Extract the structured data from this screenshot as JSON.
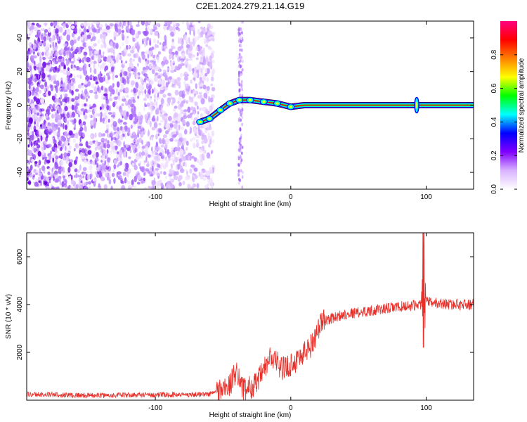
{
  "title": "C2E1.2024.279.21.14.G19",
  "chart_data": [
    {
      "type": "heatmap",
      "xlabel": "Height of straight line (km)",
      "ylabel": "Frequency (Hz)",
      "xlim": [
        -195,
        135
      ],
      "ylim": [
        -50,
        50
      ],
      "xticks": [
        -100,
        0,
        100
      ],
      "yticks": [
        -40,
        -20,
        0,
        20,
        40
      ],
      "colorbar": {
        "label": "Normalized spectral amplitude",
        "range": [
          0,
          1
        ],
        "ticks": [
          0.0,
          0.2,
          0.4,
          0.6,
          0.8
        ],
        "colormap": [
          "#ffffff",
          "#d9b3ff",
          "#8000ff",
          "#0000ff",
          "#00ffff",
          "#00ff00",
          "#ffff00",
          "#ff8000",
          "#ff0000",
          "#ff0080"
        ]
      },
      "noise_region_x": [
        -195,
        -57
      ],
      "trace": [
        {
          "x": -67,
          "y": -10
        },
        {
          "x": -60,
          "y": -8
        },
        {
          "x": -52,
          "y": -3
        },
        {
          "x": -45,
          "y": 1
        },
        {
          "x": -38,
          "y": 3
        },
        {
          "x": -30,
          "y": 3
        },
        {
          "x": -20,
          "y": 2
        },
        {
          "x": -10,
          "y": 1
        },
        {
          "x": 0,
          "y": -1
        },
        {
          "x": 10,
          "y": 0
        },
        {
          "x": 50,
          "y": 0
        },
        {
          "x": 93,
          "y": 0
        },
        {
          "x": 135,
          "y": 0
        }
      ]
    },
    {
      "type": "line",
      "xlabel": "Height of straight line (km)",
      "ylabel": "SNR (10 * v/v)",
      "xlim": [
        -195,
        135
      ],
      "ylim": [
        0,
        7000
      ],
      "xticks": [
        -100,
        0,
        100
      ],
      "yticks": [
        2000,
        4000,
        6000
      ],
      "series": [
        {
          "color": "#e8302a",
          "profile": [
            {
              "x": -195,
              "y": 250
            },
            {
              "x": -150,
              "y": 200
            },
            {
              "x": -100,
              "y": 220
            },
            {
              "x": -60,
              "y": 250
            },
            {
              "x": -45,
              "y": 600
            },
            {
              "x": -40,
              "y": 1300
            },
            {
              "x": -35,
              "y": 400
            },
            {
              "x": -25,
              "y": 700
            },
            {
              "x": -15,
              "y": 1800
            },
            {
              "x": -5,
              "y": 1300
            },
            {
              "x": 5,
              "y": 1700
            },
            {
              "x": 15,
              "y": 2300
            },
            {
              "x": 23,
              "y": 3300
            },
            {
              "x": 40,
              "y": 3600
            },
            {
              "x": 60,
              "y": 3750
            },
            {
              "x": 80,
              "y": 3900
            },
            {
              "x": 95,
              "y": 4000
            },
            {
              "x": 100,
              "y": 4100
            },
            {
              "x": 120,
              "y": 4000
            },
            {
              "x": 135,
              "y": 4000
            }
          ],
          "spike": {
            "x": 98,
            "max": 7000,
            "min": 2200
          }
        }
      ]
    }
  ]
}
